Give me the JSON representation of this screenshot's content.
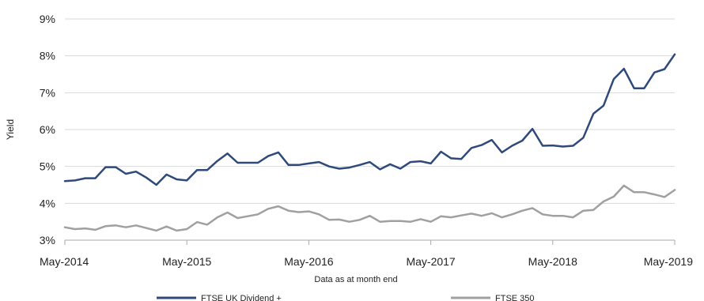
{
  "chart_data": {
    "type": "line",
    "title": "",
    "xlabel": "Data as at month end",
    "ylabel": "Yield",
    "ylim": [
      3,
      9
    ],
    "y_ticks": [
      3,
      4,
      5,
      6,
      7,
      8,
      9
    ],
    "y_tick_labels": [
      "3%",
      "4%",
      "5%",
      "6%",
      "7%",
      "8%",
      "9%"
    ],
    "x_tick_labels": [
      "May-2014",
      "May-2015",
      "May-2016",
      "May-2017",
      "May-2018",
      "May-2019"
    ],
    "grid": "horizontal",
    "legend_position": "bottom",
    "x": [
      "2014-05",
      "2014-06",
      "2014-07",
      "2014-08",
      "2014-09",
      "2014-10",
      "2014-11",
      "2014-12",
      "2015-01",
      "2015-02",
      "2015-03",
      "2015-04",
      "2015-05",
      "2015-06",
      "2015-07",
      "2015-08",
      "2015-09",
      "2015-10",
      "2015-11",
      "2015-12",
      "2016-01",
      "2016-02",
      "2016-03",
      "2016-04",
      "2016-05",
      "2016-06",
      "2016-07",
      "2016-08",
      "2016-09",
      "2016-10",
      "2016-11",
      "2016-12",
      "2017-01",
      "2017-02",
      "2017-03",
      "2017-04",
      "2017-05",
      "2017-06",
      "2017-07",
      "2017-08",
      "2017-09",
      "2017-10",
      "2017-11",
      "2017-12",
      "2018-01",
      "2018-02",
      "2018-03",
      "2018-04",
      "2018-05",
      "2018-06",
      "2018-07",
      "2018-08",
      "2018-09",
      "2018-10",
      "2018-11",
      "2018-12",
      "2019-01",
      "2019-02",
      "2019-03",
      "2019-04",
      "2019-05"
    ],
    "series": [
      {
        "name": "FTSE UK Dividend +",
        "color": "#2f4a7a",
        "values": [
          4.6,
          4.62,
          4.68,
          4.68,
          4.98,
          4.98,
          4.8,
          4.86,
          4.7,
          4.5,
          4.78,
          4.65,
          4.62,
          4.9,
          4.9,
          5.15,
          5.35,
          5.1,
          5.1,
          5.1,
          5.28,
          5.38,
          5.04,
          5.04,
          5.08,
          5.12,
          5.0,
          4.94,
          4.97,
          5.04,
          5.12,
          4.92,
          5.06,
          4.94,
          5.12,
          5.14,
          5.08,
          5.4,
          5.22,
          5.2,
          5.5,
          5.58,
          5.72,
          5.38,
          5.56,
          5.7,
          6.02,
          5.56,
          5.57,
          5.54,
          5.56,
          5.78,
          6.43,
          6.65,
          7.37,
          7.65,
          7.12,
          7.12,
          7.55,
          7.64,
          8.04
        ]
      },
      {
        "name": "FTSE 350",
        "color": "#a0a0a0",
        "values": [
          3.35,
          3.3,
          3.32,
          3.28,
          3.38,
          3.4,
          3.35,
          3.4,
          3.33,
          3.26,
          3.37,
          3.26,
          3.3,
          3.49,
          3.42,
          3.62,
          3.75,
          3.6,
          3.65,
          3.7,
          3.85,
          3.92,
          3.8,
          3.76,
          3.78,
          3.7,
          3.55,
          3.56,
          3.5,
          3.55,
          3.66,
          3.5,
          3.52,
          3.52,
          3.5,
          3.57,
          3.5,
          3.65,
          3.62,
          3.67,
          3.72,
          3.66,
          3.73,
          3.62,
          3.7,
          3.8,
          3.87,
          3.7,
          3.66,
          3.66,
          3.62,
          3.8,
          3.82,
          4.05,
          4.18,
          4.48,
          4.3,
          4.3,
          4.24,
          4.17,
          4.36
        ]
      }
    ]
  }
}
